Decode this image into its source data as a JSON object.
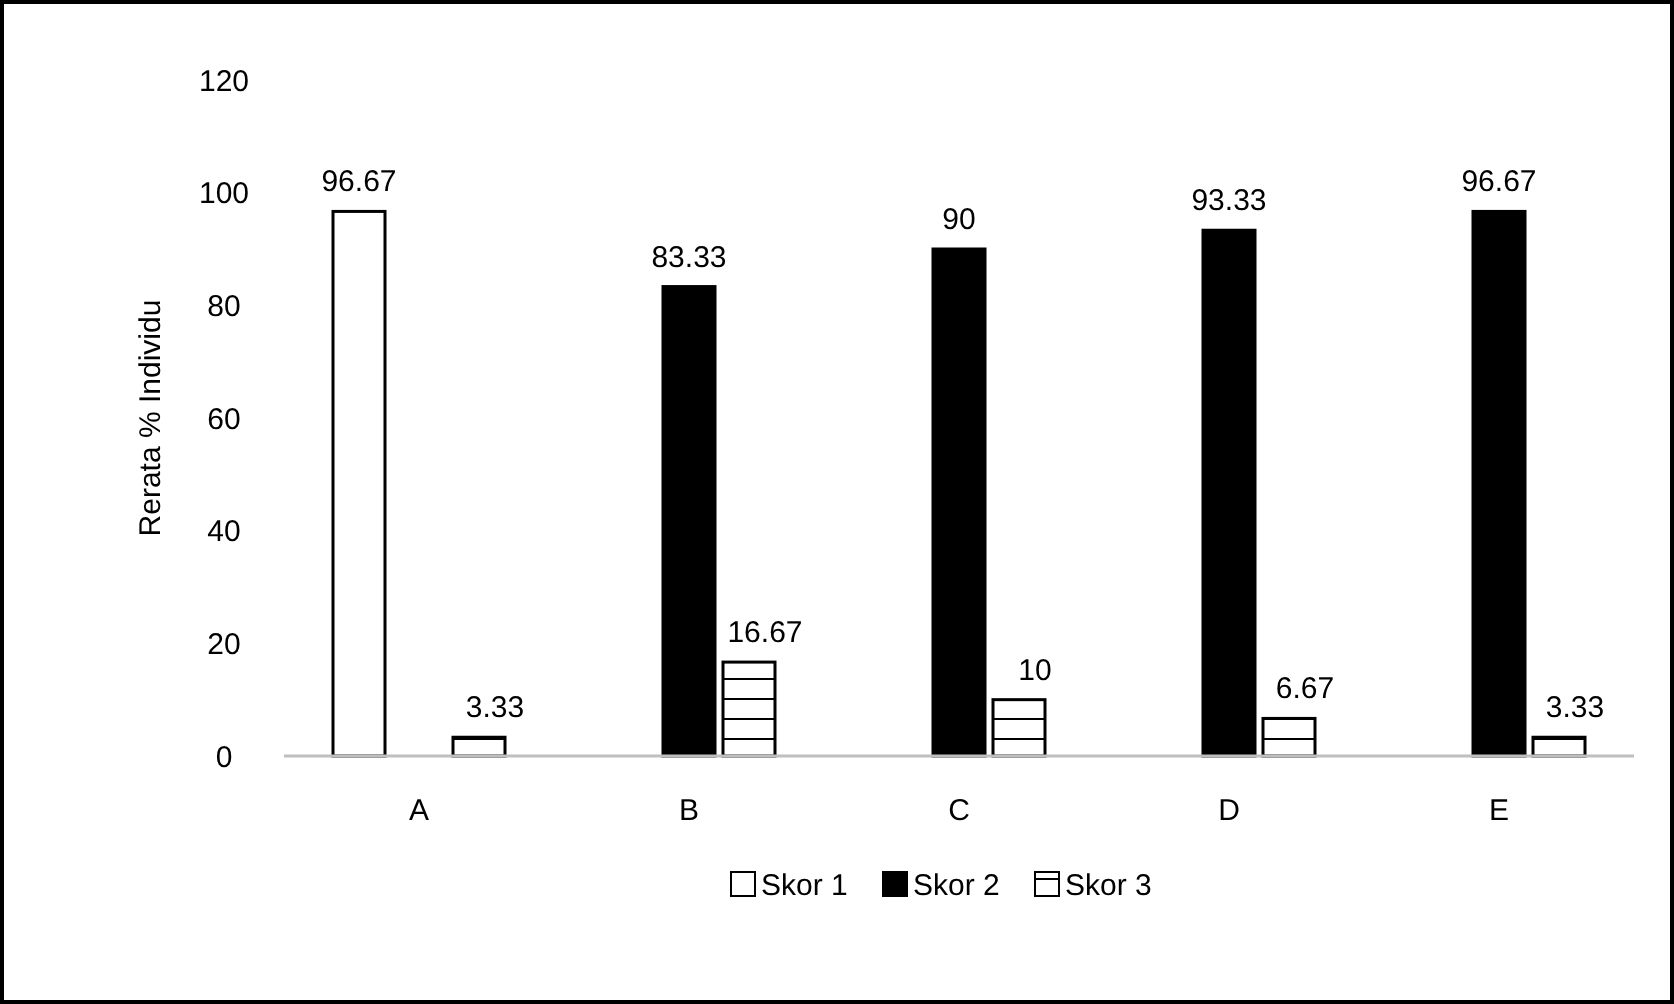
{
  "chart_data": {
    "type": "bar",
    "ylabel": "Rerata % Individu",
    "categories": [
      "A",
      "B",
      "C",
      "D",
      "E"
    ],
    "series": [
      {
        "name": "Skor 1",
        "color": "#ffffff",
        "values": [
          96.67,
          null,
          null,
          null,
          null
        ]
      },
      {
        "name": "Skor 2",
        "color": "#000000",
        "values": [
          null,
          83.33,
          90,
          93.33,
          96.67
        ]
      },
      {
        "name": "Skor 3",
        "color": "#ffffff",
        "values": [
          3.33,
          16.67,
          10,
          6.67,
          3.33
        ]
      }
    ],
    "ylim": [
      0,
      120
    ],
    "yticks": [
      0,
      20,
      40,
      60,
      80,
      100,
      120
    ],
    "grid": false,
    "legend": "bottom",
    "data_labels": true
  }
}
